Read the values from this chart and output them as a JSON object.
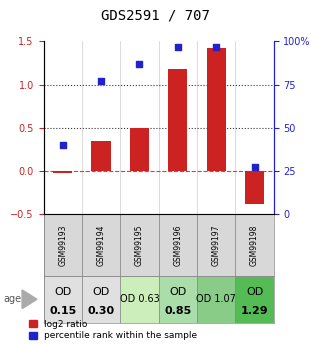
{
  "title": "GDS2591 / 707",
  "samples": [
    "GSM99193",
    "GSM99194",
    "GSM99195",
    "GSM99196",
    "GSM99197",
    "GSM99198"
  ],
  "log2_ratio": [
    -0.02,
    0.35,
    0.5,
    1.18,
    1.42,
    -0.38
  ],
  "percentile_rank": [
    40,
    77,
    87,
    97,
    97,
    27
  ],
  "bar_color": "#cc2222",
  "dot_color": "#2222cc",
  "age_labels_line1": [
    "OD",
    "OD",
    "OD 0.63",
    "OD",
    "OD 1.07",
    "OD"
  ],
  "age_labels_line2": [
    "0.15",
    "0.30",
    "",
    "0.85",
    "",
    "1.29"
  ],
  "age_bg_colors": [
    "#e0e0e0",
    "#e0e0e0",
    "#cceebb",
    "#aaddaa",
    "#88cc88",
    "#55bb55"
  ],
  "age_font_sizes_l1": [
    8,
    8,
    7,
    8,
    7,
    8
  ],
  "age_font_sizes_l2": [
    8,
    8,
    0,
    8,
    0,
    8
  ],
  "ylim_left": [
    -0.5,
    1.5
  ],
  "ylim_right": [
    0,
    100
  ],
  "yticks_left": [
    -0.5,
    0.0,
    0.5,
    1.0,
    1.5
  ],
  "yticks_right": [
    0,
    25,
    50,
    75,
    100
  ],
  "yticklabels_right": [
    "0",
    "25",
    "50",
    "75",
    "100%"
  ],
  "hlines": [
    0.0,
    0.5,
    1.0
  ],
  "hline_styles": [
    "--",
    ":",
    ":"
  ],
  "hline_colors": [
    "#cc4444",
    "#333333",
    "#333333"
  ],
  "title_fontsize": 10,
  "legend_red_label": "log2 ratio",
  "legend_blue_label": "percentile rank within the sample",
  "bar_width": 0.5
}
